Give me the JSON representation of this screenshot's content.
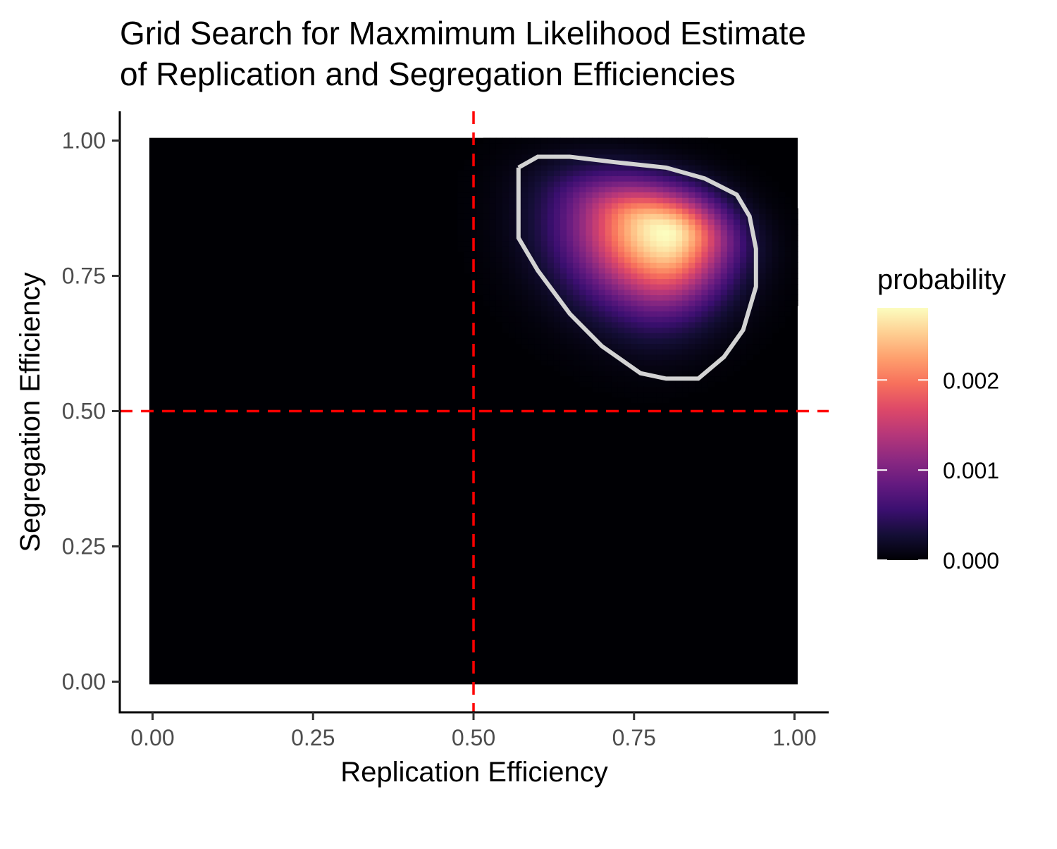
{
  "chart_data": {
    "type": "heatmap",
    "title_lines": [
      "Grid Search for Maxmimum Likelihood Estimate",
      "of Replication and Segregation Efficiencies"
    ],
    "xlabel": "Replication Efficiency",
    "ylabel": "Segregation Efficiency",
    "xlim": [
      -0.05,
      1.05
    ],
    "ylim": [
      -0.05,
      1.05
    ],
    "x_ticks": [
      0.0,
      0.25,
      0.5,
      0.75,
      1.0
    ],
    "x_tick_labels": [
      "0.00",
      "0.25",
      "0.50",
      "0.75",
      "1.00"
    ],
    "y_ticks": [
      0.0,
      0.25,
      0.5,
      0.75,
      1.0
    ],
    "y_tick_labels": [
      "0.00",
      "0.25",
      "0.50",
      "0.75",
      "1.00"
    ],
    "grid": false,
    "grid_step": 0.01,
    "peak": {
      "x": 0.8,
      "y": 0.83,
      "probability": 0.0028
    },
    "reference_lines": {
      "x": 0.5,
      "y": 0.5,
      "color": "#ff0000",
      "style": "dashed"
    },
    "contour_color": "#d3d3d3",
    "contour_points": [
      [
        0.57,
        0.95
      ],
      [
        0.6,
        0.97
      ],
      [
        0.65,
        0.97
      ],
      [
        0.72,
        0.96
      ],
      [
        0.8,
        0.95
      ],
      [
        0.86,
        0.93
      ],
      [
        0.91,
        0.9
      ],
      [
        0.93,
        0.86
      ],
      [
        0.94,
        0.8
      ],
      [
        0.94,
        0.73
      ],
      [
        0.92,
        0.65
      ],
      [
        0.89,
        0.6
      ],
      [
        0.85,
        0.56
      ],
      [
        0.8,
        0.56
      ],
      [
        0.76,
        0.57
      ],
      [
        0.7,
        0.62
      ],
      [
        0.65,
        0.68
      ],
      [
        0.6,
        0.76
      ],
      [
        0.57,
        0.82
      ],
      [
        0.57,
        0.95
      ]
    ],
    "legend": {
      "title": "probability",
      "position": "right",
      "min": 0.0,
      "max": 0.0028,
      "breaks": [
        0.0,
        0.001,
        0.002
      ],
      "break_labels": [
        "0.000",
        "0.001",
        "0.002"
      ],
      "colormap": "magma"
    }
  }
}
